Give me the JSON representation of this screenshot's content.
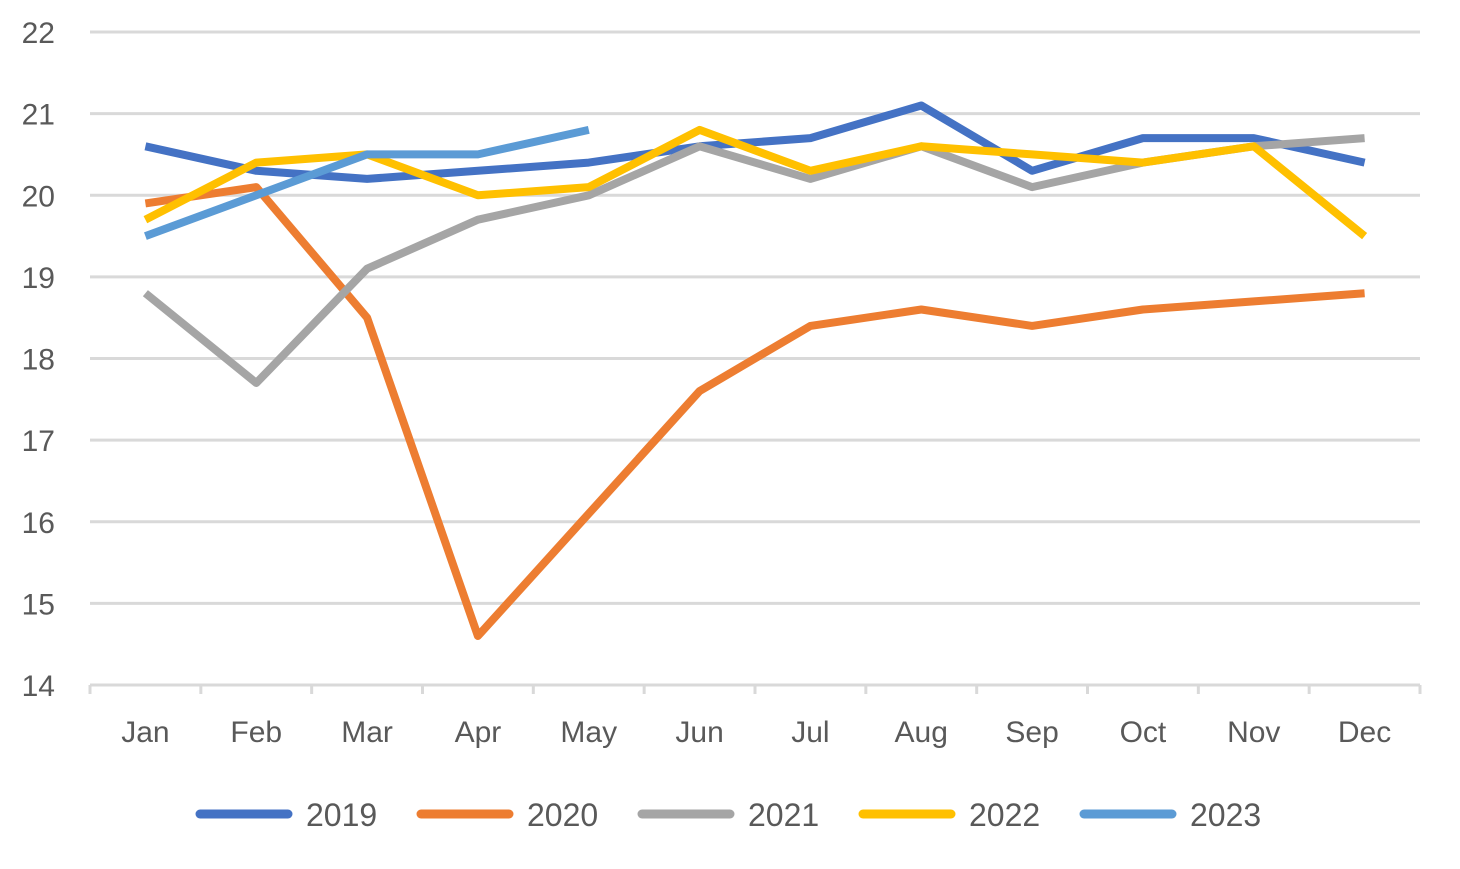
{
  "chart_data": {
    "type": "line",
    "title": "",
    "xlabel": "",
    "ylabel": "",
    "categories": [
      "Jan",
      "Feb",
      "Mar",
      "Apr",
      "May",
      "Jun",
      "Jul",
      "Aug",
      "Sep",
      "Oct",
      "Nov",
      "Dec"
    ],
    "y_ticks": [
      "14",
      "15",
      "16",
      "17",
      "18",
      "19",
      "20",
      "21",
      "22"
    ],
    "ylim": [
      14,
      22
    ],
    "grid": true,
    "legend_position": "bottom",
    "series": [
      {
        "name": "2019",
        "color": "#4472c4",
        "values": [
          20.6,
          20.3,
          20.2,
          20.3,
          20.4,
          20.6,
          20.7,
          21.1,
          20.3,
          20.7,
          20.7,
          20.4
        ]
      },
      {
        "name": "2020",
        "color": "#ed7d31",
        "values": [
          19.9,
          20.1,
          18.5,
          14.6,
          16.1,
          17.6,
          18.4,
          18.6,
          18.4,
          18.6,
          18.7,
          18.8
        ]
      },
      {
        "name": "2021",
        "color": "#a5a5a5",
        "values": [
          18.8,
          17.7,
          19.1,
          19.7,
          20.0,
          20.6,
          20.2,
          20.6,
          20.1,
          20.4,
          20.6,
          20.7
        ]
      },
      {
        "name": "2022",
        "color": "#ffc000",
        "values": [
          19.7,
          20.4,
          20.5,
          20.0,
          20.1,
          20.8,
          20.3,
          20.6,
          20.5,
          20.4,
          20.6,
          19.5
        ]
      },
      {
        "name": "2023",
        "color": "#5b9bd5",
        "values": [
          19.5,
          20.0,
          20.5,
          20.5,
          20.8,
          null,
          null,
          null,
          null,
          null,
          null,
          null
        ]
      }
    ]
  }
}
